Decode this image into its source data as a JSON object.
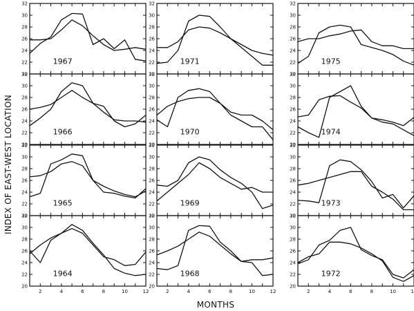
{
  "figure": {
    "ylabel": "INDEX OF EAST-WEST LOCATION",
    "xlabel": "MONTHS"
  },
  "chart_data": {
    "type": "line",
    "layout": "small-multiples",
    "grid": false,
    "ylim": [
      20,
      32
    ],
    "xlim": [
      1,
      12
    ],
    "x": [
      1,
      2,
      3,
      4,
      5,
      6,
      7,
      8,
      9,
      10,
      11,
      12
    ],
    "panel_columns": [
      [
        "1967",
        "1966",
        "1965",
        "1964"
      ],
      [
        "1971",
        "1970",
        "1969",
        "1968"
      ],
      [
        "1975",
        "1974",
        "1973",
        "1972"
      ]
    ],
    "x_tick_labels": [
      "2",
      "4",
      "6",
      "8",
      "10",
      "12"
    ],
    "y_tick_labels": [
      "20",
      "22",
      "24",
      "26",
      "28",
      "30",
      "32"
    ],
    "panels": [
      {
        "year": "1967",
        "series": [
          [
            23.5,
            25.2,
            26.3,
            29.2,
            30.3,
            30.2,
            25.0,
            26.0,
            24.3,
            25.8,
            22.5,
            22.2
          ],
          [
            25.8,
            25.8,
            26.0,
            27.5,
            29.2,
            28.2,
            26.5,
            25.0,
            24.0,
            24.2,
            24.5,
            24.2
          ]
        ]
      },
      {
        "year": "1966",
        "series": [
          [
            23.2,
            24.5,
            26.0,
            29.0,
            30.5,
            30.0,
            27.0,
            26.5,
            24.0,
            23.0,
            23.5,
            25.0
          ],
          [
            26.0,
            26.3,
            26.8,
            28.0,
            29.2,
            28.0,
            27.0,
            25.5,
            24.2,
            24.0,
            24.0,
            23.8
          ]
        ]
      },
      {
        "year": "1965",
        "series": [
          [
            23.2,
            23.8,
            28.8,
            29.5,
            30.5,
            30.2,
            26.0,
            24.0,
            23.8,
            23.3,
            23.0,
            24.6
          ],
          [
            26.6,
            26.8,
            27.5,
            28.8,
            29.2,
            28.5,
            26.0,
            25.0,
            24.2,
            23.6,
            23.2,
            24.2
          ]
        ]
      },
      {
        "year": "1964",
        "series": [
          [
            26.0,
            24.0,
            27.8,
            29.0,
            30.5,
            29.5,
            27.3,
            25.3,
            23.0,
            22.2,
            21.8,
            22.0
          ],
          [
            25.5,
            27.0,
            28.2,
            29.0,
            29.8,
            29.0,
            27.0,
            25.0,
            24.5,
            23.5,
            23.7,
            25.8
          ]
        ]
      },
      {
        "year": "1971",
        "series": [
          [
            21.8,
            22.0,
            24.0,
            29.0,
            30.0,
            29.8,
            28.0,
            26.0,
            24.5,
            23.0,
            21.5,
            21.5
          ],
          [
            24.5,
            24.5,
            25.5,
            27.5,
            28.0,
            27.8,
            27.0,
            26.0,
            25.0,
            24.0,
            23.5,
            23.2
          ]
        ]
      },
      {
        "year": "1970",
        "series": [
          [
            24.2,
            23.0,
            28.0,
            29.2,
            29.5,
            29.0,
            27.0,
            25.0,
            24.0,
            23.0,
            23.0,
            20.8
          ],
          [
            25.0,
            26.5,
            27.3,
            27.8,
            28.0,
            28.0,
            27.0,
            25.5,
            25.0,
            25.0,
            24.0,
            22.5
          ]
        ]
      },
      {
        "year": "1969",
        "series": [
          [
            25.2,
            25.0,
            26.0,
            29.0,
            30.0,
            29.5,
            27.8,
            26.5,
            25.5,
            24.0,
            21.2,
            21.8
          ],
          [
            22.5,
            24.0,
            25.5,
            27.0,
            29.0,
            28.0,
            26.5,
            25.5,
            24.5,
            24.8,
            24.0,
            24.0
          ]
        ]
      },
      {
        "year": "1968",
        "series": [
          [
            23.0,
            22.8,
            23.5,
            29.5,
            30.3,
            30.2,
            27.5,
            26.0,
            24.2,
            24.0,
            21.8,
            22.0
          ],
          [
            25.3,
            26.0,
            26.8,
            28.0,
            29.2,
            28.5,
            27.0,
            25.5,
            24.2,
            24.5,
            24.5,
            24.8
          ]
        ]
      },
      {
        "year": "1975",
        "series": [
          [
            21.8,
            23.0,
            27.0,
            28.0,
            28.3,
            28.0,
            25.0,
            24.5,
            24.0,
            23.3,
            22.2,
            21.5
          ],
          [
            25.5,
            26.0,
            26.0,
            26.5,
            26.8,
            27.3,
            27.5,
            25.5,
            24.8,
            24.8,
            24.3,
            24.3
          ]
        ]
      },
      {
        "year": "1974",
        "series": [
          [
            23.0,
            22.0,
            21.2,
            28.0,
            29.0,
            30.0,
            26.5,
            24.5,
            23.8,
            23.5,
            22.5,
            21.5
          ],
          [
            24.7,
            25.0,
            27.6,
            28.2,
            28.3,
            27.2,
            26.2,
            24.5,
            24.2,
            23.8,
            23.2,
            24.6
          ]
        ]
      },
      {
        "year": "1973",
        "series": [
          [
            22.6,
            22.5,
            22.2,
            28.5,
            29.5,
            29.2,
            27.8,
            25.8,
            23.0,
            23.6,
            21.3,
            23.4
          ],
          [
            25.2,
            25.5,
            26.0,
            26.5,
            27.0,
            27.5,
            27.5,
            25.0,
            24.0,
            22.8,
            21.0,
            21.0
          ]
        ]
      },
      {
        "year": "1972",
        "series": [
          [
            23.8,
            24.5,
            27.0,
            27.8,
            29.5,
            30.0,
            26.2,
            25.2,
            24.5,
            22.0,
            21.4,
            22.8
          ],
          [
            24.0,
            25.0,
            25.5,
            27.5,
            27.5,
            27.2,
            26.5,
            25.5,
            24.3,
            21.5,
            20.8,
            21.8
          ]
        ]
      }
    ]
  }
}
